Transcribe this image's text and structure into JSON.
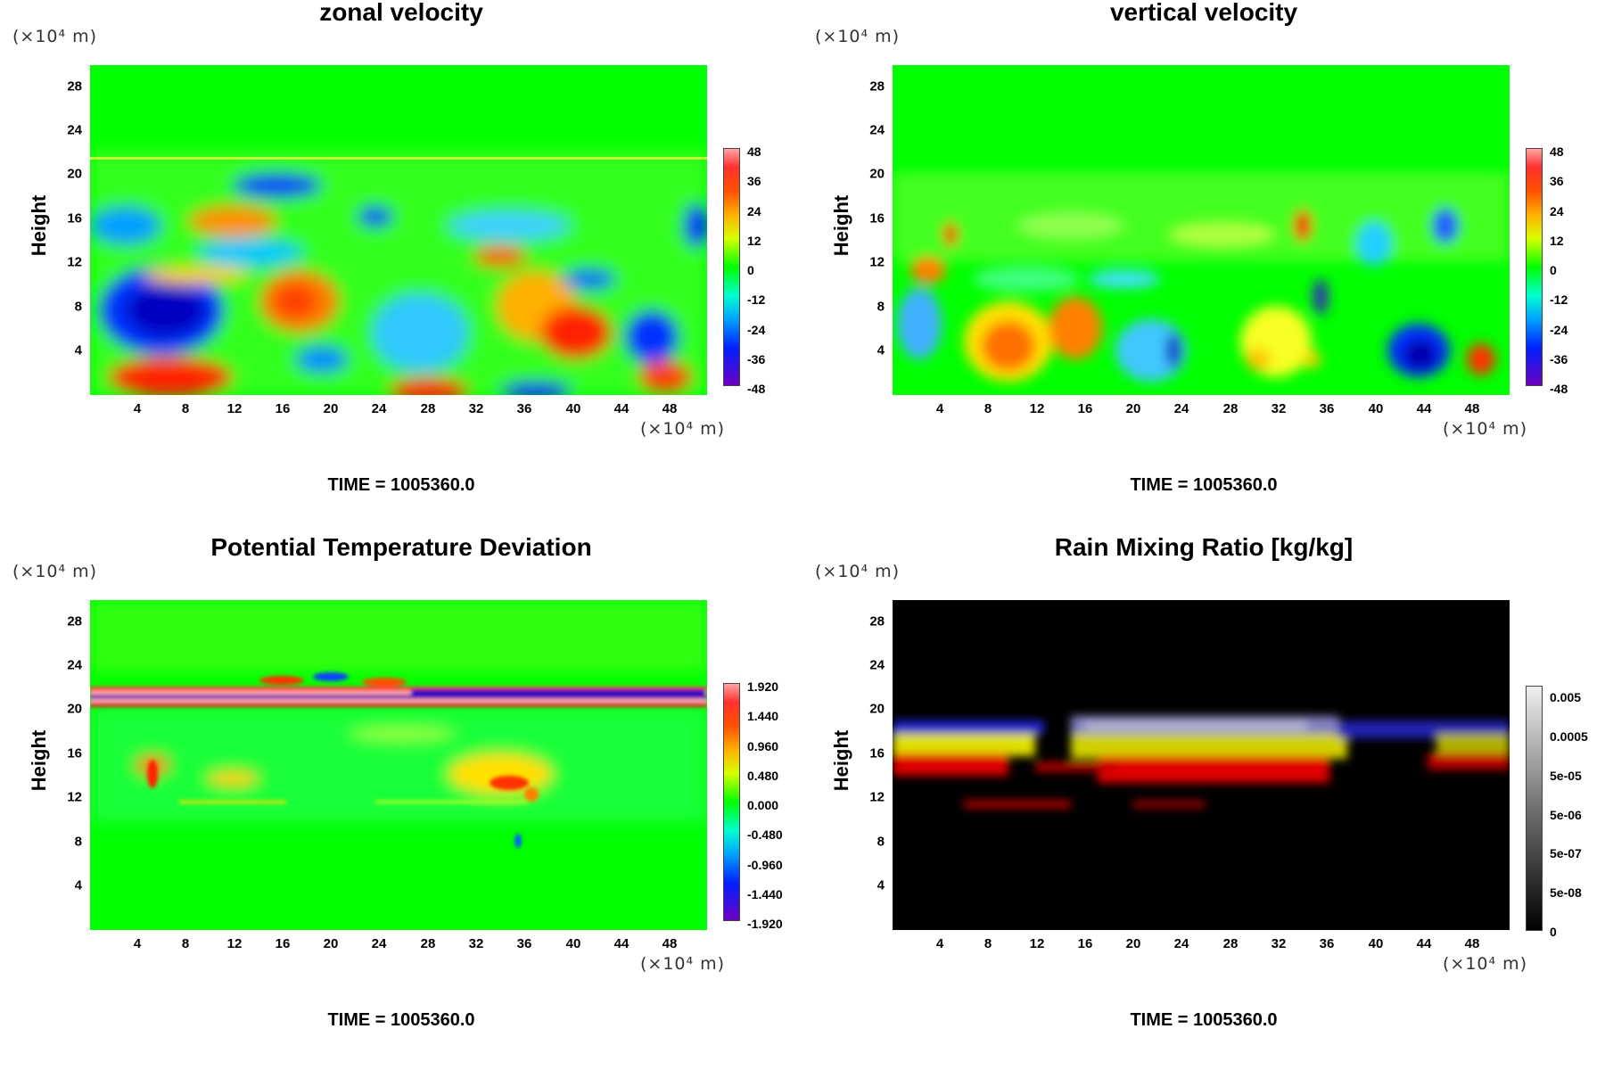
{
  "panels": [
    {
      "title": "zonal velocity",
      "ylabel": "Height",
      "yunit": "(×10⁴ m)",
      "xunit": "(×10⁴ m)",
      "time": "TIME = 1005360.0",
      "colorbar": [
        "48",
        "36",
        "24",
        "12",
        "0",
        "-12",
        "-24",
        "-36",
        "-48"
      ],
      "colormap": "rainbow"
    },
    {
      "title": "vertical velocity",
      "ylabel": "Height",
      "yunit": "(×10⁴ m)",
      "xunit": "(×10⁴ m)",
      "time": "TIME = 1005360.0",
      "colorbar": [
        "48",
        "36",
        "24",
        "12",
        "0",
        "-12",
        "-24",
        "-36",
        "-48"
      ],
      "colormap": "rainbow"
    },
    {
      "title": "Potential Temperature Deviation",
      "ylabel": "Height",
      "yunit": "(×10⁴ m)",
      "xunit": "(×10⁴ m)",
      "time": "TIME = 1005360.0",
      "colorbar": [
        "1.920",
        "1.440",
        "0.960",
        "0.480",
        "0.000",
        "-0.480",
        "-0.960",
        "-1.440",
        "-1.920"
      ],
      "colormap": "rainbow"
    },
    {
      "title": "Rain Mixing Ratio [kg/kg]",
      "ylabel": "Height",
      "yunit": "(×10⁴ m)",
      "xunit": "(×10⁴ m)",
      "time": "TIME = 1005360.0",
      "colorbar": [
        "0.005",
        "0.0005",
        "5e-05",
        "5e-06",
        "5e-07",
        "5e-08",
        "0"
      ],
      "colormap": "grayscale"
    }
  ],
  "chart_data": [
    {
      "type": "heatmap",
      "title": "zonal velocity",
      "ylabel": "Height",
      "xunit": "×10⁴ m",
      "yunit": "×10⁴ m",
      "x_ticks": [
        4,
        8,
        12,
        16,
        20,
        24,
        28,
        32,
        36,
        40,
        44,
        48
      ],
      "y_ticks": [
        4,
        8,
        12,
        16,
        20,
        24,
        28
      ],
      "xlim": [
        0,
        51
      ],
      "ylim": [
        0,
        30
      ],
      "color_range": [
        -48,
        48
      ],
      "time": 1005360.0
    },
    {
      "type": "heatmap",
      "title": "vertical velocity",
      "ylabel": "Height",
      "xunit": "×10⁴ m",
      "yunit": "×10⁴ m",
      "x_ticks": [
        4,
        8,
        12,
        16,
        20,
        24,
        28,
        32,
        36,
        40,
        44,
        48
      ],
      "y_ticks": [
        4,
        8,
        12,
        16,
        20,
        24,
        28
      ],
      "xlim": [
        0,
        51
      ],
      "ylim": [
        0,
        30
      ],
      "color_range": [
        -48,
        48
      ],
      "time": 1005360.0
    },
    {
      "type": "heatmap",
      "title": "Potential Temperature Deviation",
      "ylabel": "Height",
      "xunit": "×10⁴ m",
      "yunit": "×10⁴ m",
      "x_ticks": [
        4,
        8,
        12,
        16,
        20,
        24,
        28,
        32,
        36,
        40,
        44,
        48
      ],
      "y_ticks": [
        4,
        8,
        12,
        16,
        20,
        24,
        28
      ],
      "xlim": [
        0,
        51
      ],
      "ylim": [
        0,
        30
      ],
      "color_range": [
        -1.92,
        1.92
      ],
      "time": 1005360.0
    },
    {
      "type": "heatmap",
      "title": "Rain Mixing Ratio [kg/kg]",
      "ylabel": "Height",
      "xunit": "×10⁴ m",
      "yunit": "×10⁴ m",
      "x_ticks": [
        4,
        8,
        12,
        16,
        20,
        24,
        28,
        32,
        36,
        40,
        44,
        48
      ],
      "y_ticks": [
        4,
        8,
        12,
        16,
        20,
        24,
        28
      ],
      "xlim": [
        0,
        51
      ],
      "ylim": [
        0,
        30
      ],
      "color_scale": "log",
      "color_levels": [
        0,
        5e-08,
        5e-07,
        5e-06,
        5e-05,
        0.0005,
        0.005
      ],
      "time": 1005360.0
    }
  ]
}
